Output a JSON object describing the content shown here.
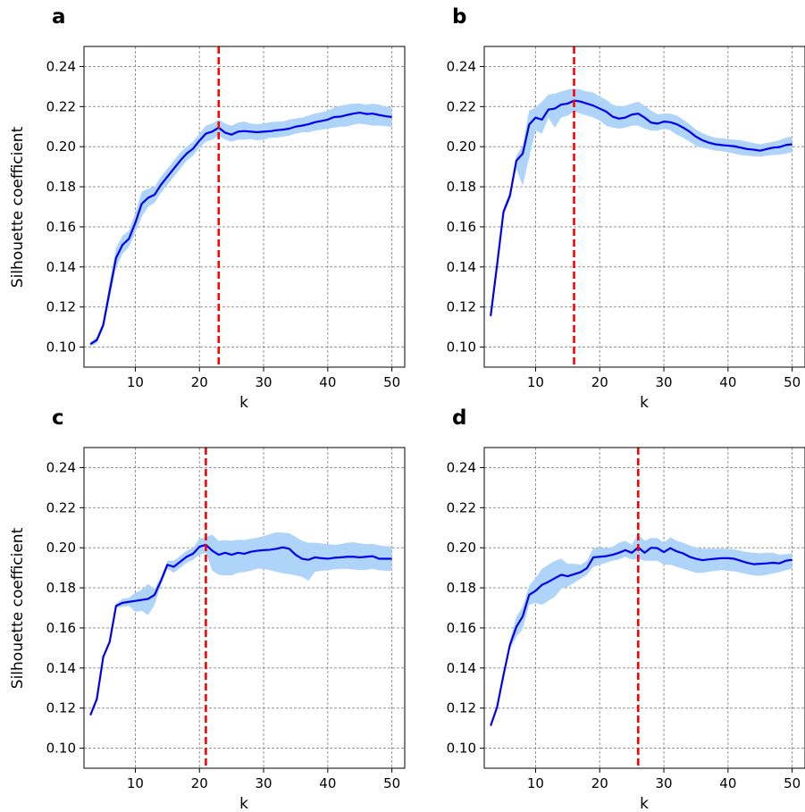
{
  "chart_data": [
    {
      "type": "line",
      "panel_label": "a",
      "xlabel": "k",
      "ylabel": "Silhouette coefficient",
      "xlim": [
        2,
        52
      ],
      "ylim": [
        0.09,
        0.25
      ],
      "xticks": [
        10,
        20,
        30,
        40,
        50
      ],
      "yticks": [
        0.1,
        0.12,
        0.14,
        0.16,
        0.18,
        0.2,
        0.22,
        0.24
      ],
      "ytick_labels": [
        "0.10",
        "0.12",
        "0.14",
        "0.16",
        "0.18",
        "0.20",
        "0.22",
        "0.24"
      ],
      "grid": true,
      "optimal_k": 23,
      "x": [
        3,
        4,
        5,
        6,
        7,
        8,
        9,
        10,
        11,
        12,
        13,
        14,
        15,
        16,
        17,
        18,
        19,
        20,
        21,
        22,
        23,
        24,
        25,
        26,
        27,
        28,
        29,
        30,
        31,
        32,
        33,
        34,
        35,
        36,
        37,
        38,
        39,
        40,
        41,
        42,
        43,
        44,
        45,
        46,
        47,
        48,
        49,
        50
      ],
      "series": [
        {
          "values": [
            0.1015,
            0.1035,
            0.111,
            0.128,
            0.1445,
            0.151,
            0.154,
            0.162,
            0.1715,
            0.1745,
            0.176,
            0.181,
            0.185,
            0.189,
            0.193,
            0.1965,
            0.199,
            0.203,
            0.2065,
            0.2075,
            0.2095,
            0.207,
            0.206,
            0.2075,
            0.2078,
            0.2075,
            0.2072,
            0.2075,
            0.2077,
            0.2082,
            0.2085,
            0.209,
            0.21,
            0.2105,
            0.2112,
            0.2122,
            0.2128,
            0.2135,
            0.2148,
            0.215,
            0.2158,
            0.2165,
            0.217,
            0.2163,
            0.2165,
            0.2158,
            0.2152,
            0.2148
          ],
          "lower": [
            0.1005,
            0.102,
            0.109,
            0.124,
            0.1395,
            0.1465,
            0.15,
            0.157,
            0.165,
            0.17,
            0.172,
            0.177,
            0.181,
            0.185,
            0.189,
            0.193,
            0.1955,
            0.1995,
            0.2025,
            0.2035,
            0.2055,
            0.2035,
            0.2025,
            0.2035,
            0.2035,
            0.2038,
            0.2032,
            0.2035,
            0.2045,
            0.2045,
            0.205,
            0.2055,
            0.2065,
            0.2072,
            0.2072,
            0.208,
            0.2085,
            0.209,
            0.2095,
            0.21,
            0.21,
            0.211,
            0.2115,
            0.211,
            0.2105,
            0.2105,
            0.2102,
            0.2098
          ],
          "upper": [
            0.1025,
            0.105,
            0.113,
            0.132,
            0.1495,
            0.1555,
            0.158,
            0.167,
            0.1775,
            0.179,
            0.18,
            0.185,
            0.189,
            0.193,
            0.197,
            0.2,
            0.2025,
            0.2065,
            0.2105,
            0.2115,
            0.2135,
            0.2115,
            0.2105,
            0.212,
            0.2125,
            0.2115,
            0.2112,
            0.2115,
            0.2122,
            0.2125,
            0.2125,
            0.2135,
            0.214,
            0.2145,
            0.2155,
            0.2165,
            0.2172,
            0.218,
            0.2195,
            0.2205,
            0.221,
            0.2215,
            0.2215,
            0.221,
            0.2215,
            0.221,
            0.22,
            0.2195
          ]
        }
      ]
    },
    {
      "type": "line",
      "panel_label": "b",
      "xlabel": "k",
      "ylabel": "",
      "xlim": [
        2,
        52
      ],
      "ylim": [
        0.09,
        0.25
      ],
      "xticks": [
        10,
        20,
        30,
        40,
        50
      ],
      "yticks": [
        0.1,
        0.12,
        0.14,
        0.16,
        0.18,
        0.2,
        0.22,
        0.24
      ],
      "ytick_labels": [
        "0.10",
        "0.12",
        "0.14",
        "0.16",
        "0.18",
        "0.20",
        "0.22",
        "0.24"
      ],
      "grid": true,
      "optimal_k": 16,
      "x": [
        3,
        4,
        5,
        6,
        7,
        8,
        9,
        10,
        11,
        12,
        13,
        14,
        15,
        16,
        17,
        18,
        19,
        20,
        21,
        22,
        23,
        24,
        25,
        26,
        27,
        28,
        29,
        30,
        31,
        32,
        33,
        34,
        35,
        36,
        37,
        38,
        39,
        40,
        41,
        42,
        43,
        44,
        45,
        46,
        47,
        48,
        49,
        50
      ],
      "series": [
        {
          "values": [
            0.1155,
            0.141,
            0.1675,
            0.1755,
            0.193,
            0.1965,
            0.211,
            0.2145,
            0.2135,
            0.2185,
            0.219,
            0.221,
            0.2215,
            0.223,
            0.2225,
            0.2215,
            0.2205,
            0.219,
            0.2175,
            0.215,
            0.214,
            0.2145,
            0.216,
            0.2165,
            0.2145,
            0.212,
            0.2115,
            0.2125,
            0.2122,
            0.2112,
            0.2095,
            0.2075,
            0.205,
            0.2032,
            0.202,
            0.2012,
            0.2008,
            0.2005,
            0.2002,
            0.1995,
            0.1988,
            0.1985,
            0.198,
            0.1988,
            0.1995,
            0.1998,
            0.2008,
            0.2012
          ],
          "lower": [
            0.1135,
            0.1385,
            0.1655,
            0.1735,
            0.189,
            0.1805,
            0.1945,
            0.208,
            0.2065,
            0.2145,
            0.2095,
            0.2145,
            0.2155,
            0.2175,
            0.2165,
            0.2155,
            0.2145,
            0.213,
            0.2105,
            0.2095,
            0.209,
            0.2095,
            0.2105,
            0.2105,
            0.209,
            0.208,
            0.208,
            0.209,
            0.2082,
            0.206,
            0.2045,
            0.2025,
            0.2005,
            0.1995,
            0.1988,
            0.198,
            0.1978,
            0.1972,
            0.1965,
            0.1958,
            0.1955,
            0.1952,
            0.195,
            0.1955,
            0.1958,
            0.196,
            0.1965,
            0.1972
          ],
          "upper": [
            0.1185,
            0.1435,
            0.1695,
            0.1775,
            0.1955,
            0.2005,
            0.218,
            0.2195,
            0.2225,
            0.226,
            0.2265,
            0.2275,
            0.2285,
            0.229,
            0.2285,
            0.2275,
            0.227,
            0.225,
            0.2235,
            0.221,
            0.22,
            0.2205,
            0.2215,
            0.2225,
            0.2205,
            0.218,
            0.2162,
            0.2165,
            0.2165,
            0.2155,
            0.2135,
            0.2112,
            0.2085,
            0.2068,
            0.2055,
            0.2045,
            0.2042,
            0.2038,
            0.2035,
            0.2032,
            0.2025,
            0.2018,
            0.2012,
            0.2018,
            0.2025,
            0.2032,
            0.2045,
            0.2052
          ]
        }
      ]
    },
    {
      "type": "line",
      "panel_label": "c",
      "xlabel": "k",
      "ylabel": "Silhouette coefficient",
      "xlim": [
        2,
        52
      ],
      "ylim": [
        0.09,
        0.25
      ],
      "xticks": [
        10,
        20,
        30,
        40,
        50
      ],
      "yticks": [
        0.1,
        0.12,
        0.14,
        0.16,
        0.18,
        0.2,
        0.22,
        0.24
      ],
      "ytick_labels": [
        "0.10",
        "0.12",
        "0.14",
        "0.16",
        "0.18",
        "0.20",
        "0.22",
        "0.24"
      ],
      "grid": true,
      "optimal_k": 21,
      "x": [
        3,
        4,
        5,
        6,
        7,
        8,
        9,
        10,
        11,
        12,
        13,
        14,
        15,
        16,
        17,
        18,
        19,
        20,
        21,
        22,
        23,
        24,
        25,
        26,
        27,
        28,
        29,
        30,
        31,
        32,
        33,
        34,
        35,
        36,
        37,
        38,
        39,
        40,
        41,
        42,
        43,
        44,
        45,
        46,
        47,
        48,
        49,
        50
      ],
      "series": [
        {
          "values": [
            0.1165,
            0.1245,
            0.1455,
            0.153,
            0.171,
            0.1725,
            0.173,
            0.1735,
            0.174,
            0.1745,
            0.1765,
            0.1835,
            0.1915,
            0.1905,
            0.193,
            0.1955,
            0.197,
            0.2005,
            0.2015,
            0.1985,
            0.1965,
            0.1975,
            0.1965,
            0.1975,
            0.197,
            0.198,
            0.1985,
            0.1988,
            0.199,
            0.1995,
            0.2002,
            0.1995,
            0.1965,
            0.1945,
            0.194,
            0.1952,
            0.1948,
            0.1945,
            0.195,
            0.1952,
            0.1955,
            0.1955,
            0.1952,
            0.1955,
            0.1958,
            0.1945,
            0.1945,
            0.1945
          ],
          "lower": [
            0.1155,
            0.1235,
            0.1445,
            0.152,
            0.17,
            0.1705,
            0.171,
            0.168,
            0.1685,
            0.1665,
            0.1715,
            0.1815,
            0.1895,
            0.1875,
            0.19,
            0.1925,
            0.194,
            0.1965,
            0.1975,
            0.1885,
            0.1865,
            0.1862,
            0.1862,
            0.1875,
            0.1878,
            0.1885,
            0.1895,
            0.1895,
            0.1888,
            0.188,
            0.1872,
            0.1868,
            0.1862,
            0.1855,
            0.1835,
            0.188,
            0.1885,
            0.1888,
            0.1892,
            0.1895,
            0.1895,
            0.1892,
            0.1888,
            0.189,
            0.1895,
            0.1888,
            0.1885,
            0.1885
          ],
          "upper": [
            0.1175,
            0.1255,
            0.1465,
            0.154,
            0.172,
            0.1745,
            0.175,
            0.1775,
            0.179,
            0.182,
            0.1795,
            0.1855,
            0.1935,
            0.1935,
            0.196,
            0.1985,
            0.2,
            0.2045,
            0.2055,
            0.2065,
            0.2035,
            0.2038,
            0.2035,
            0.204,
            0.2038,
            0.2045,
            0.205,
            0.2058,
            0.2068,
            0.2078,
            0.2075,
            0.2072,
            0.2055,
            0.2035,
            0.2025,
            0.2025,
            0.2022,
            0.2018,
            0.2015,
            0.2018,
            0.2025,
            0.2028,
            0.2022,
            0.2018,
            0.202,
            0.2012,
            0.2008,
            0.2005
          ]
        }
      ]
    },
    {
      "type": "line",
      "panel_label": "d",
      "xlabel": "k",
      "ylabel": "",
      "xlim": [
        2,
        52
      ],
      "ylim": [
        0.09,
        0.25
      ],
      "xticks": [
        10,
        20,
        30,
        40,
        50
      ],
      "yticks": [
        0.1,
        0.12,
        0.14,
        0.16,
        0.18,
        0.2,
        0.22,
        0.24
      ],
      "ytick_labels": [
        "0.10",
        "0.12",
        "0.14",
        "0.16",
        "0.18",
        "0.20",
        "0.22",
        "0.24"
      ],
      "grid": true,
      "optimal_k": 26,
      "x": [
        3,
        4,
        5,
        6,
        7,
        8,
        9,
        10,
        11,
        12,
        13,
        14,
        15,
        16,
        17,
        18,
        19,
        20,
        21,
        22,
        23,
        24,
        25,
        26,
        27,
        28,
        29,
        30,
        31,
        32,
        33,
        34,
        35,
        36,
        37,
        38,
        39,
        40,
        41,
        42,
        43,
        44,
        45,
        46,
        47,
        48,
        49,
        50
      ],
      "series": [
        {
          "values": [
            0.1112,
            0.1205,
            0.1365,
            0.1515,
            0.1605,
            0.1658,
            0.1765,
            0.1785,
            0.1815,
            0.183,
            0.1848,
            0.1865,
            0.1858,
            0.1868,
            0.1878,
            0.1898,
            0.1952,
            0.1955,
            0.1958,
            0.1965,
            0.1975,
            0.1988,
            0.1975,
            0.2002,
            0.1975,
            0.2,
            0.1998,
            0.1978,
            0.1998,
            0.1982,
            0.1972,
            0.1955,
            0.1945,
            0.1938,
            0.1942,
            0.1945,
            0.1948,
            0.1948,
            0.1945,
            0.1935,
            0.1925,
            0.1918,
            0.192,
            0.1922,
            0.1925,
            0.1922,
            0.1935,
            0.194
          ],
          "lower": [
            0.1102,
            0.1195,
            0.1355,
            0.1495,
            0.1555,
            0.1595,
            0.1715,
            0.1725,
            0.1715,
            0.1735,
            0.1755,
            0.1795,
            0.1805,
            0.1825,
            0.1845,
            0.1865,
            0.1905,
            0.1915,
            0.1925,
            0.1935,
            0.1942,
            0.1955,
            0.1942,
            0.1945,
            0.1935,
            0.1935,
            0.1935,
            0.1915,
            0.1915,
            0.1905,
            0.1895,
            0.1885,
            0.1875,
            0.1875,
            0.188,
            0.1885,
            0.1888,
            0.1885,
            0.1882,
            0.1875,
            0.1868,
            0.1862,
            0.186,
            0.1865,
            0.1872,
            0.1878,
            0.1888,
            0.1895
          ],
          "upper": [
            0.1122,
            0.1215,
            0.1375,
            0.1535,
            0.1655,
            0.1705,
            0.181,
            0.185,
            0.1895,
            0.1915,
            0.1935,
            0.1945,
            0.192,
            0.192,
            0.1915,
            0.1935,
            0.1998,
            0.1998,
            0.1998,
            0.2005,
            0.2025,
            0.2035,
            0.2015,
            0.2068,
            0.2035,
            0.2048,
            0.2048,
            0.2025,
            0.2052,
            0.2035,
            0.2025,
            0.2012,
            0.2002,
            0.1995,
            0.1995,
            0.1995,
            0.1995,
            0.1995,
            0.1992,
            0.1985,
            0.1978,
            0.1975,
            0.1972,
            0.1975,
            0.1975,
            0.1965,
            0.1968,
            0.1972
          ]
        }
      ]
    }
  ],
  "colors": {
    "line": "#0000ee",
    "band": "#aed4fa",
    "optimal_line": "#ff0000",
    "grid": "#888888",
    "axes": "#000000"
  }
}
